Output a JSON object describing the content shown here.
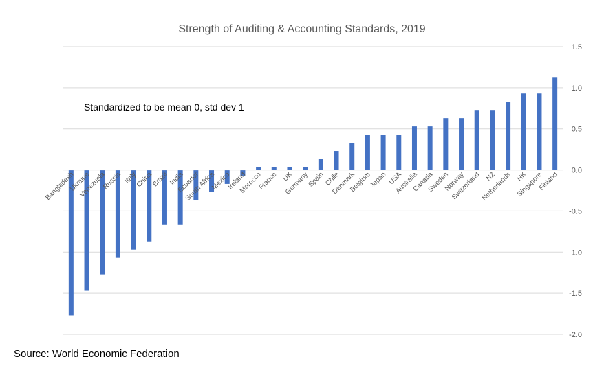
{
  "chart_data": {
    "type": "bar",
    "title": "Strength of Auditing & Accounting Standards, 2019",
    "annotation": "Standardized to be mean 0, std dev 1",
    "categories": [
      "Bangladesh",
      "Ukraine",
      "Venezuela",
      "Russia",
      "Italy",
      "China",
      "Brazil",
      "India",
      "Ecuador",
      "South Africa",
      "Mexico",
      "Ireland",
      "Morocco",
      "France",
      "UK",
      "Germany",
      "Spain",
      "Chile",
      "Denmark",
      "Belgium",
      "Japan",
      "USA",
      "Australia",
      "Canada",
      "Sweden",
      "Norway",
      "Switzerland",
      "NZ",
      "Netherlands",
      "HK",
      "Singapore",
      "Finland"
    ],
    "values": [
      -1.77,
      -1.47,
      -1.27,
      -1.07,
      -0.97,
      -0.87,
      -0.67,
      -0.67,
      -0.37,
      -0.27,
      -0.17,
      -0.07,
      0.03,
      0.03,
      0.03,
      0.03,
      0.13,
      0.23,
      0.33,
      0.43,
      0.43,
      0.43,
      0.53,
      0.53,
      0.63,
      0.63,
      0.73,
      0.73,
      0.83,
      0.93,
      0.93,
      1.13
    ],
    "ylim": [
      -2.0,
      1.5
    ],
    "yticks": [
      1.5,
      1.0,
      0.5,
      0.0,
      -0.5,
      -1.0,
      -1.5,
      -2.0
    ],
    "ytick_labels": [
      "1.5",
      "1.0",
      "0.5",
      "0.0",
      "-0.5",
      "-1.0",
      "-1.5",
      "-2.0"
    ],
    "y_axis_position": "right",
    "grid": true,
    "bar_color": "#4472C4",
    "grid_color": "#D9D9D9",
    "xlabel": "",
    "ylabel": ""
  },
  "source": "Source: World Economic Federation"
}
